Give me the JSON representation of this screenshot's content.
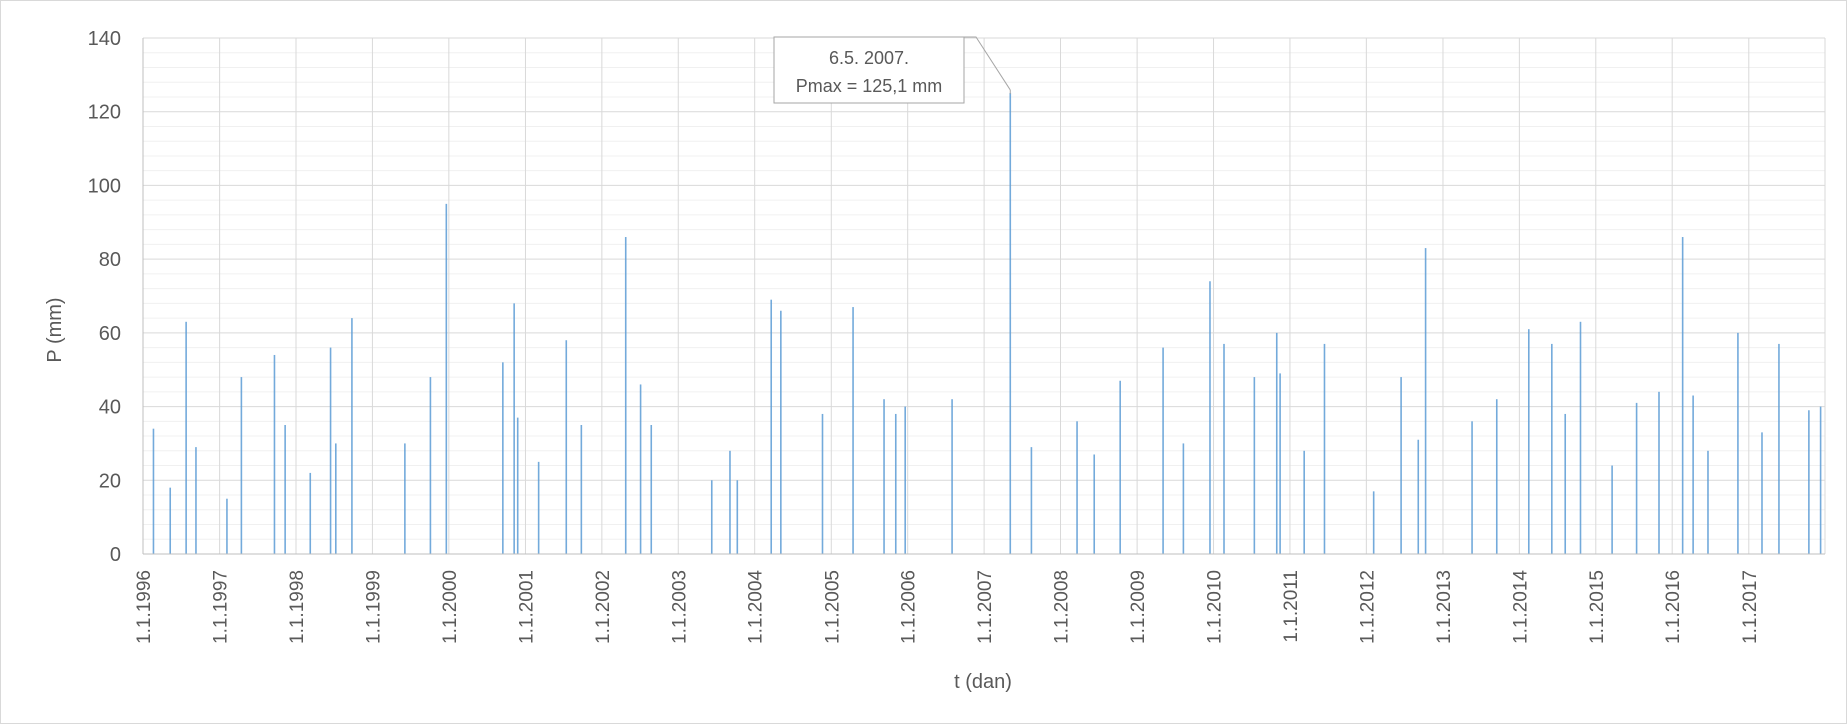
{
  "chart_data": {
    "type": "bar",
    "title": "",
    "xlabel": "t (dan)",
    "ylabel": "P (mm)",
    "ylim": [
      0,
      140
    ],
    "yticks": [
      "0",
      "20",
      "40",
      "60",
      "80",
      "100",
      "120",
      "140"
    ],
    "xlim": [
      "1996-01-01",
      "2017-12-31"
    ],
    "xticks": [
      "1.1.1996",
      "1.1.1997",
      "1.1.1998",
      "1.1.1999",
      "1.1.2000",
      "1.1.2001",
      "1.1.2002",
      "1.1.2003",
      "1.1.2004",
      "1.1.2005",
      "1.1.2006",
      "1.1.2007",
      "1.1.2008",
      "1.1.2009",
      "1.1.2010",
      "1.1.2011",
      "1.1.2012",
      "1.1.2013",
      "1.1.2014",
      "1.1.2015",
      "1.1.2016",
      "1.1.2017"
    ],
    "grid": true,
    "colors": {
      "series": "#5b9bd5",
      "grid_major": "#d9d9d9",
      "grid_minor": "#f0f0f0",
      "axis": "#bfbfbf",
      "text": "#595959"
    },
    "series": [
      {
        "x": [
          "1996-02-20",
          "1996-07-25",
          "1996-09-10",
          "1997-04-15",
          "1997-09-20",
          "1997-11-10",
          "1998-06-15",
          "1998-07-10",
          "1998-09-25",
          "1999-06-05",
          "1999-10-05",
          "1999-12-20",
          "2000-09-15",
          "2000-11-08",
          "2000-11-25",
          "2001-07-15",
          "2001-09-25",
          "2002-04-25",
          "2002-07-05",
          "2002-08-25",
          "2003-09-05",
          "2003-10-10",
          "2004-03-20",
          "2004-05-05",
          "2004-11-20",
          "2005-04-15",
          "2005-09-10",
          "2005-11-05",
          "2005-12-20",
          "2006-08-01",
          "2007-05-06",
          "2007-08-15",
          "2008-03-20",
          "2008-10-12",
          "2009-05-05",
          "2009-12-15",
          "2010-02-20",
          "2010-07-15",
          "2010-10-30",
          "2010-11-15",
          "2011-06-15",
          "2012-06-15",
          "2012-09-05",
          "2012-10-10",
          "2013-05-20",
          "2013-09-15",
          "2014-02-15",
          "2014-06-05",
          "2014-08-08",
          "2014-10-20",
          "2015-07-15",
          "2015-10-30",
          "2016-02-20",
          "2016-04-10",
          "2016-06-20",
          "2016-11-10",
          "2017-05-25",
          "2017-10-15",
          "2017-12-10",
          "1996-05-10",
          "1997-02-05",
          "1998-03-10",
          "2001-03-05",
          "2003-06-10",
          "2008-06-10",
          "2009-08-10",
          "2011-03-10",
          "2012-02-05",
          "2015-03-20",
          "2017-03-05"
        ],
        "values": [
          34,
          63,
          29,
          48,
          54,
          35,
          56,
          30,
          64,
          30,
          48,
          95,
          52,
          68,
          37,
          58,
          35,
          86,
          46,
          35,
          28,
          20,
          69,
          66,
          38,
          67,
          42,
          38,
          40,
          42,
          125.1,
          29,
          36,
          47,
          56,
          74,
          57,
          48,
          60,
          49,
          57,
          48,
          31,
          83,
          36,
          42,
          61,
          57,
          38,
          63,
          41,
          44,
          86,
          43,
          28,
          60,
          57,
          39,
          40,
          18,
          15,
          22,
          25,
          20,
          27,
          30,
          28,
          17,
          24,
          33
        ]
      }
    ],
    "annotation": {
      "line1": "6.5. 2007.",
      "line2": "Pmax = 125,1 mm",
      "date": "2007-05-06",
      "value": 125.1
    }
  }
}
